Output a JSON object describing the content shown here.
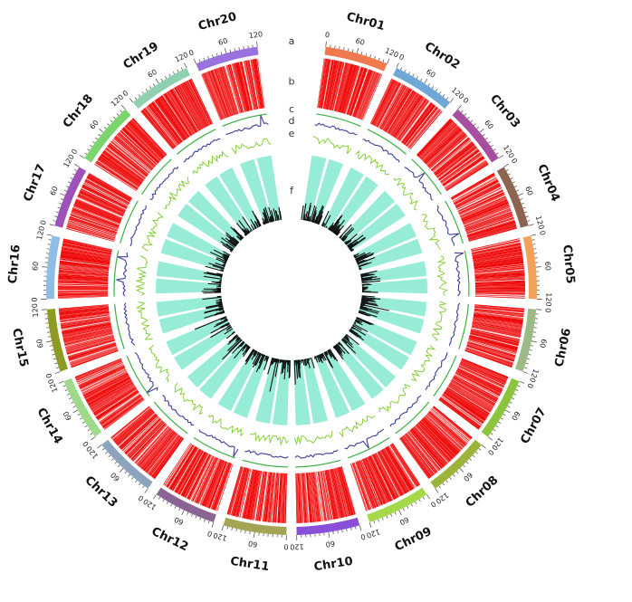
{
  "chart_data": {
    "type": "circos",
    "track_labels": [
      "a",
      "b",
      "c",
      "d",
      "e",
      "f"
    ],
    "chromosomes": [
      {
        "name": "Chr01",
        "color": "#f07a4e",
        "ticks": [
          "0",
          "60",
          "120"
        ]
      },
      {
        "name": "Chr02",
        "color": "#6fa7d6",
        "ticks": [
          "0",
          "60",
          "120"
        ]
      },
      {
        "name": "Chr03",
        "color": "#a64fa0",
        "ticks": [
          "0",
          "60",
          "120"
        ]
      },
      {
        "name": "Chr04",
        "color": "#8d6450",
        "ticks": [
          "0",
          "60",
          "120"
        ]
      },
      {
        "name": "Chr05",
        "color": "#f2a15a",
        "ticks": [
          "0",
          "60",
          "120"
        ]
      },
      {
        "name": "Chr06",
        "color": "#9bba86",
        "ticks": [
          "0",
          "60",
          "120"
        ]
      },
      {
        "name": "Chr07",
        "color": "#8cc43c",
        "ticks": [
          "0",
          "60",
          "120"
        ]
      },
      {
        "name": "Chr08",
        "color": "#9bb43a",
        "ticks": [
          "0",
          "60",
          "120"
        ]
      },
      {
        "name": "Chr09",
        "color": "#a6d94a",
        "ticks": [
          "0",
          "60",
          "120"
        ]
      },
      {
        "name": "Chr10",
        "color": "#8a4fd8",
        "ticks": [
          "0",
          "60",
          "120"
        ]
      },
      {
        "name": "Chr11",
        "color": "#a3a554",
        "ticks": [
          "0",
          "60",
          "120"
        ]
      },
      {
        "name": "Chr12",
        "color": "#8a6593",
        "ticks": [
          "0",
          "60",
          "120"
        ]
      },
      {
        "name": "Chr13",
        "color": "#8ea4be",
        "ticks": [
          "0",
          "60",
          "120"
        ]
      },
      {
        "name": "Chr14",
        "color": "#9fd98a",
        "ticks": [
          "0",
          "60",
          "120"
        ]
      },
      {
        "name": "Chr15",
        "color": "#8f9a22",
        "ticks": [
          "0",
          "60",
          "120"
        ]
      },
      {
        "name": "Chr16",
        "color": "#90bde6",
        "ticks": [
          "0",
          "60",
          "120"
        ]
      },
      {
        "name": "Chr17",
        "color": "#9c52b8",
        "ticks": [
          "0",
          "60",
          "120"
        ]
      },
      {
        "name": "Chr18",
        "color": "#7bd56e",
        "ticks": [
          "0",
          "60",
          "120"
        ]
      },
      {
        "name": "Chr19",
        "color": "#8fd0b0",
        "ticks": [
          "0",
          "60",
          "120"
        ]
      },
      {
        "name": "Chr20",
        "color": "#9a72e0",
        "ticks": [
          "0",
          "60",
          "120"
        ]
      }
    ],
    "colors": {
      "density": "#ee0000",
      "track_c": "#3cb043",
      "track_d": "#3d3f9a",
      "track_e": "#7ccc2c",
      "sector_fill": "#97ecd8",
      "histogram": "#111111"
    }
  }
}
